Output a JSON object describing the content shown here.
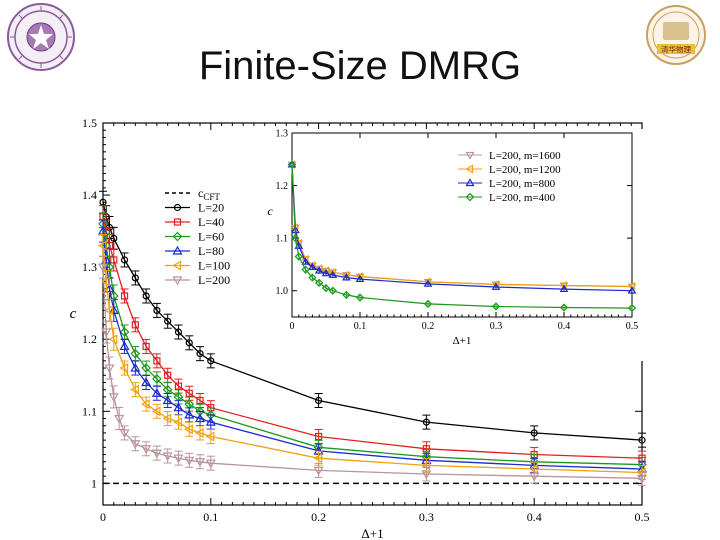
{
  "slide": {
    "title": "Finite-Size DMRG",
    "right_logo_text": "清华物理"
  },
  "colors": {
    "L=20": "#000000",
    "L=40": "#e02020",
    "L=60": "#1a9a1a",
    "L=80": "#1a2ad0",
    "L=100": "#f0a010",
    "L=200": "#b8959a",
    "cft_line": "#000000",
    "frame": "#000000"
  },
  "chart_data": [
    {
      "type": "line",
      "xlabel": "Δ+1",
      "ylabel": "c",
      "xlim": [
        0,
        0.5
      ],
      "ylim": [
        0.97,
        1.5
      ],
      "xticks": [
        "0",
        "0.1",
        "0.2",
        "0.3",
        "0.4",
        "0.5"
      ],
      "yticks": [
        "1",
        "1.1",
        "1.2",
        "1.3",
        "1.4",
        "1.5"
      ],
      "legend_position": "top-left",
      "legend_labels": [
        "c_CFT",
        "L=20",
        "L=40",
        "L=60",
        "L=80",
        "L=100",
        "L=200"
      ],
      "reference_line": {
        "name": "c_CFT",
        "value": 1.0,
        "style": "dashed"
      },
      "series": [
        {
          "name": "L=20",
          "marker": "circle",
          "x": [
            0,
            0.003,
            0.006,
            0.01,
            0.02,
            0.03,
            0.04,
            0.05,
            0.06,
            0.07,
            0.08,
            0.09,
            0.1,
            0.2,
            0.3,
            0.4,
            0.5
          ],
          "y": [
            1.39,
            1.37,
            1.355,
            1.34,
            1.31,
            1.285,
            1.26,
            1.24,
            1.225,
            1.21,
            1.195,
            1.18,
            1.17,
            1.115,
            1.085,
            1.07,
            1.06
          ]
        },
        {
          "name": "L=40",
          "marker": "square",
          "x": [
            0,
            0.003,
            0.006,
            0.01,
            0.02,
            0.03,
            0.04,
            0.05,
            0.06,
            0.07,
            0.08,
            0.09,
            0.1,
            0.2,
            0.3,
            0.4,
            0.5
          ],
          "y": [
            1.37,
            1.35,
            1.33,
            1.31,
            1.26,
            1.22,
            1.19,
            1.17,
            1.15,
            1.135,
            1.125,
            1.115,
            1.105,
            1.065,
            1.048,
            1.04,
            1.035
          ]
        },
        {
          "name": "L=60",
          "marker": "diamond",
          "x": [
            0,
            0.003,
            0.006,
            0.01,
            0.02,
            0.03,
            0.04,
            0.05,
            0.06,
            0.07,
            0.08,
            0.09,
            0.1,
            0.2,
            0.3,
            0.4,
            0.5
          ],
          "y": [
            1.36,
            1.33,
            1.3,
            1.26,
            1.21,
            1.18,
            1.16,
            1.145,
            1.13,
            1.12,
            1.11,
            1.1,
            1.095,
            1.05,
            1.037,
            1.03,
            1.026
          ]
        },
        {
          "name": "L=80",
          "marker": "triangle-up",
          "x": [
            0,
            0.003,
            0.006,
            0.01,
            0.02,
            0.03,
            0.04,
            0.05,
            0.06,
            0.07,
            0.08,
            0.09,
            0.1,
            0.2,
            0.3,
            0.4,
            0.5
          ],
          "y": [
            1.35,
            1.31,
            1.27,
            1.24,
            1.19,
            1.16,
            1.14,
            1.125,
            1.115,
            1.105,
            1.095,
            1.09,
            1.085,
            1.045,
            1.032,
            1.025,
            1.02
          ]
        },
        {
          "name": "L=100",
          "marker": "triangle-left",
          "x": [
            0,
            0.003,
            0.006,
            0.01,
            0.02,
            0.03,
            0.04,
            0.05,
            0.06,
            0.07,
            0.08,
            0.09,
            0.1,
            0.2,
            0.3,
            0.4,
            0.5
          ],
          "y": [
            1.33,
            1.28,
            1.24,
            1.2,
            1.16,
            1.13,
            1.11,
            1.1,
            1.09,
            1.085,
            1.075,
            1.07,
            1.065,
            1.035,
            1.025,
            1.02,
            1.015
          ]
        },
        {
          "name": "L=200",
          "marker": "triangle-down",
          "x": [
            0,
            0.003,
            0.006,
            0.01,
            0.015,
            0.02,
            0.03,
            0.04,
            0.05,
            0.06,
            0.07,
            0.08,
            0.09,
            0.1,
            0.2,
            0.3,
            0.4,
            0.5
          ],
          "y": [
            1.3,
            1.21,
            1.16,
            1.12,
            1.09,
            1.07,
            1.055,
            1.048,
            1.042,
            1.038,
            1.035,
            1.032,
            1.03,
            1.028,
            1.018,
            1.013,
            1.01,
            1.007
          ]
        }
      ]
    },
    {
      "type": "line",
      "xlabel": "Δ+1",
      "ylabel": "c",
      "xlim": [
        0,
        0.5
      ],
      "ylim": [
        0.95,
        1.3
      ],
      "xticks": [
        "0",
        "0.1",
        "0.2",
        "0.3",
        "0.4",
        "0.5"
      ],
      "yticks": [
        "1.0",
        "1.1",
        "1.2",
        "1.3"
      ],
      "legend_position": "top-right",
      "legend_labels": [
        "L=200, m=1600",
        "L=200, m=1200",
        "L=200, m=800",
        "L=200, m=400"
      ],
      "series": [
        {
          "name": "L=200, m=1600",
          "marker": "triangle-down",
          "color": "#b8959a",
          "x": [
            0,
            0.005,
            0.01,
            0.02,
            0.03,
            0.04,
            0.05,
            0.06,
            0.08,
            0.1,
            0.2,
            0.3,
            0.4,
            0.5
          ],
          "y": [
            1.24,
            1.12,
            1.09,
            1.06,
            1.048,
            1.042,
            1.038,
            1.035,
            1.03,
            1.027,
            1.017,
            1.012,
            1.01,
            1.008
          ]
        },
        {
          "name": "L=200, m=1200",
          "marker": "triangle-left",
          "color": "#f0a010",
          "x": [
            0,
            0.005,
            0.01,
            0.02,
            0.03,
            0.04,
            0.05,
            0.06,
            0.08,
            0.1,
            0.2,
            0.3,
            0.4,
            0.5
          ],
          "y": [
            1.24,
            1.12,
            1.09,
            1.06,
            1.048,
            1.042,
            1.038,
            1.035,
            1.03,
            1.027,
            1.017,
            1.012,
            1.01,
            1.008
          ]
        },
        {
          "name": "L=200, m=800",
          "marker": "triangle-up",
          "color": "#1a2ad0",
          "x": [
            0,
            0.005,
            0.01,
            0.02,
            0.03,
            0.04,
            0.05,
            0.06,
            0.08,
            0.1,
            0.2,
            0.3,
            0.4,
            0.5
          ],
          "y": [
            1.24,
            1.115,
            1.085,
            1.055,
            1.045,
            1.038,
            1.033,
            1.03,
            1.025,
            1.022,
            1.013,
            1.007,
            1.003,
            1.0
          ]
        },
        {
          "name": "L=200, m=400",
          "marker": "diamond",
          "color": "#1a9a1a",
          "x": [
            0,
            0.005,
            0.01,
            0.02,
            0.03,
            0.04,
            0.05,
            0.06,
            0.08,
            0.1,
            0.2,
            0.3,
            0.4,
            0.5
          ],
          "y": [
            1.24,
            1.1,
            1.065,
            1.04,
            1.025,
            1.015,
            1.005,
            1.0,
            0.992,
            0.987,
            0.975,
            0.97,
            0.968,
            0.967
          ]
        }
      ]
    }
  ]
}
